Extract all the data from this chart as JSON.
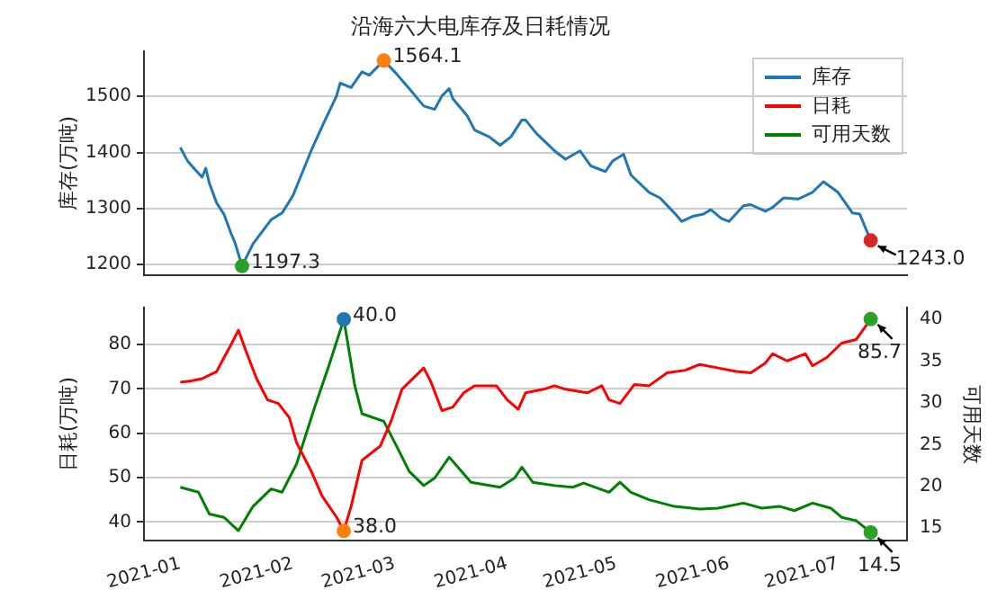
{
  "chart_data": [
    {
      "type": "line",
      "title": "沿海六大电库存及日耗情况",
      "ylabel": "库存(万吨)",
      "xlim": [
        "2020-12-22",
        "2021-07-20"
      ],
      "ylim": [
        1181,
        1581
      ],
      "yticks": [
        1200,
        1300,
        1400,
        1500
      ],
      "grid": "y",
      "legend": "top right",
      "tick_labels": "y",
      "marker": "none",
      "series": [
        {
          "name": "库存",
          "color": "#1f77b4",
          "x": [
            "2021-01-01",
            "2021-01-03",
            "2021-01-05",
            "2021-01-07",
            "2021-01-08",
            "2021-01-09",
            "2021-01-11",
            "2021-01-13",
            "2021-01-15",
            "2021-01-16",
            "2021-01-18",
            "2021-01-21",
            "2021-01-26",
            "2021-01-29",
            "2021-02-01",
            "2021-02-06",
            "2021-02-09",
            "2021-02-13",
            "2021-02-14",
            "2021-02-17",
            "2021-02-20",
            "2021-02-22",
            "2021-02-26",
            "2021-03-01",
            "2021-03-05",
            "2021-03-09",
            "2021-03-12",
            "2021-03-14",
            "2021-03-16",
            "2021-03-17",
            "2021-03-21",
            "2021-03-23",
            "2021-03-27",
            "2021-03-30",
            "2021-04-02",
            "2021-04-05",
            "2021-04-06",
            "2021-04-09",
            "2021-04-14",
            "2021-04-17",
            "2021-04-21",
            "2021-04-24",
            "2021-04-28",
            "2021-04-30",
            "2021-05-03",
            "2021-05-05",
            "2021-05-10",
            "2021-05-13",
            "2021-05-17",
            "2021-05-19",
            "2021-05-22",
            "2021-05-25",
            "2021-05-27",
            "2021-05-30",
            "2021-06-01",
            "2021-06-05",
            "2021-06-07",
            "2021-06-11",
            "2021-06-13",
            "2021-06-16",
            "2021-06-20",
            "2021-06-24",
            "2021-06-27",
            "2021-07-01",
            "2021-07-05",
            "2021-07-07",
            "2021-07-10"
          ],
          "values": [
            1409,
            1385,
            1370,
            1356,
            1372,
            1345,
            1310,
            1290,
            1255,
            1240,
            1197.3,
            1237,
            1280,
            1292,
            1323,
            1403,
            1446,
            1501,
            1524,
            1516,
            1544,
            1538,
            1564.1,
            1544,
            1514,
            1483,
            1477,
            1501,
            1514,
            1496,
            1465,
            1440,
            1428,
            1413,
            1428,
            1458,
            1458,
            1434,
            1403,
            1388,
            1403,
            1376,
            1366,
            1385,
            1397,
            1360,
            1329,
            1319,
            1292,
            1277,
            1286,
            1290,
            1298,
            1282,
            1277,
            1305,
            1307,
            1295,
            1302,
            1319,
            1317,
            1329,
            1348,
            1329,
            1292,
            1290,
            1243
          ]
        },
        {
          "type": "scatter",
          "marker": "circle",
          "x": [
            "2021-01-18",
            "2021-02-26",
            "2021-07-10"
          ],
          "values": [
            1197.3,
            1564.1,
            1243.0
          ],
          "colors": [
            "#2ca02c",
            "#ff7f0e",
            "#d62728"
          ],
          "value_labels": [
            "1197.3",
            "1564.1",
            "1243.0"
          ]
        }
      ]
    },
    {
      "type": "line",
      "legend": "top right",
      "ylabel": "日耗(万吨)",
      "y2label": "可用天数",
      "xlim": [
        "2020-12-22",
        "2021-07-20"
      ],
      "xticks": [
        "2021-01",
        "2021-02",
        "2021-03",
        "2021-04",
        "2021-05",
        "2021-06",
        "2021-07"
      ],
      "ylim": [
        35.8,
        88.3
      ],
      "yticks": [
        40,
        50,
        60,
        70,
        80
      ],
      "y2lim": [
        13.5,
        41.4
      ],
      "y2ticks": [
        15,
        20,
        25,
        30,
        35,
        40
      ],
      "grid": "y",
      "marker": "none",
      "series": [
        {
          "name": "日耗",
          "color": "#ff0000",
          "x": [
            "2021-01-01",
            "2021-01-04",
            "2021-01-07",
            "2021-01-11",
            "2021-01-13",
            "2021-01-15",
            "2021-01-17",
            "2021-01-19",
            "2021-01-22",
            "2021-01-25",
            "2021-01-28",
            "2021-01-31",
            "2021-02-02",
            "2021-02-06",
            "2021-02-09",
            "2021-02-13",
            "2021-02-15",
            "2021-02-17",
            "2021-02-20",
            "2021-02-25",
            "2021-02-28",
            "2021-03-03",
            "2021-03-05",
            "2021-03-09",
            "2021-03-11",
            "2021-03-14",
            "2021-03-17",
            "2021-03-20",
            "2021-03-23",
            "2021-03-29",
            "2021-04-01",
            "2021-04-04",
            "2021-04-06",
            "2021-04-11",
            "2021-04-14",
            "2021-04-17",
            "2021-04-23",
            "2021-04-27",
            "2021-04-29",
            "2021-05-02",
            "2021-05-06",
            "2021-05-10",
            "2021-05-15",
            "2021-05-20",
            "2021-05-24",
            "2021-05-29",
            "2021-06-03",
            "2021-06-07",
            "2021-06-11",
            "2021-06-13",
            "2021-06-17",
            "2021-06-22",
            "2021-06-24",
            "2021-06-28",
            "2021-07-02",
            "2021-07-06",
            "2021-07-10"
          ],
          "values": [
            71.5,
            71.8,
            72.3,
            73.9,
            77,
            80,
            83.2,
            78.7,
            72.3,
            67.5,
            66.7,
            63.5,
            57.9,
            51.5,
            45.9,
            41.1,
            38.0,
            43.5,
            53.9,
            57.1,
            62.7,
            69.9,
            71.5,
            74.7,
            71.5,
            65.1,
            65.9,
            69.1,
            70.7,
            70.7,
            67.5,
            65.4,
            69.1,
            69.9,
            70.7,
            69.9,
            69.1,
            70.7,
            67.5,
            66.7,
            71.0,
            70.7,
            73.6,
            74.2,
            75.5,
            74.7,
            73.9,
            73.6,
            75.8,
            77.9,
            76.3,
            77.9,
            75.2,
            77.1,
            80.3,
            81.1,
            85.7
          ]
        },
        {
          "name": "可用天数",
          "color": "#008000",
          "axis": "y2",
          "x": [
            "2021-01-01",
            "2021-01-06",
            "2021-01-09",
            "2021-01-13",
            "2021-01-17",
            "2021-01-21",
            "2021-01-26",
            "2021-01-29",
            "2021-02-02",
            "2021-02-07",
            "2021-02-11",
            "2021-02-15",
            "2021-02-18",
            "2021-02-20",
            "2021-02-26",
            "2021-03-02",
            "2021-03-05",
            "2021-03-09",
            "2021-03-12",
            "2021-03-16",
            "2021-03-19",
            "2021-03-22",
            "2021-03-30",
            "2021-04-03",
            "2021-04-05",
            "2021-04-08",
            "2021-04-14",
            "2021-04-19",
            "2021-04-22",
            "2021-04-29",
            "2021-05-02",
            "2021-05-05",
            "2021-05-10",
            "2021-05-17",
            "2021-05-24",
            "2021-05-29",
            "2021-06-05",
            "2021-06-10",
            "2021-06-15",
            "2021-06-19",
            "2021-06-24",
            "2021-06-29",
            "2021-07-02",
            "2021-07-06",
            "2021-07-10"
          ],
          "values": [
            19.9,
            19.3,
            16.7,
            16.3,
            14.7,
            17.6,
            19.7,
            19.3,
            22.7,
            29.5,
            34.6,
            40.0,
            32.1,
            28.7,
            27.8,
            24.4,
            21.8,
            20.1,
            21.0,
            23.5,
            22.0,
            20.5,
            19.9,
            21.0,
            22.3,
            20.5,
            20.1,
            19.9,
            20.4,
            19.3,
            20.5,
            19.3,
            18.4,
            17.6,
            17.3,
            17.4,
            18.0,
            17.4,
            17.6,
            17.1,
            18.0,
            17.4,
            16.3,
            15.9,
            14.5
          ]
        },
        {
          "type": "scatter",
          "marker": "circle",
          "x": [
            "2021-02-15",
            "2021-07-10"
          ],
          "values": [
            38.0,
            85.7
          ],
          "colors": [
            "#ff7f0e",
            "#2ca02c"
          ],
          "value_labels": [
            "38.0",
            "85.7"
          ]
        },
        {
          "type": "scatter",
          "marker": "circle",
          "axis": "y2",
          "x": [
            "2021-02-15",
            "2021-07-10"
          ],
          "values": [
            40.0,
            14.5
          ],
          "colors": [
            "#1f77b4",
            "#2ca02c"
          ],
          "value_labels": [
            "40.0",
            "14.5"
          ]
        }
      ]
    }
  ]
}
